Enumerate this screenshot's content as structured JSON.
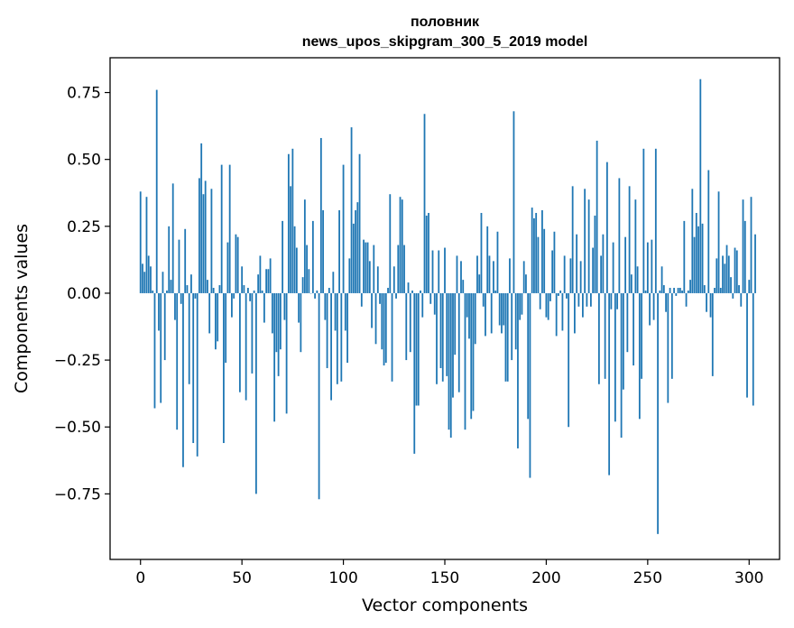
{
  "chart_data": {
    "type": "bar",
    "title_line1": "половник",
    "title_line2": "news_upos_skipgram_300_5_2019 model",
    "xlabel": "Vector components",
    "ylabel": "Components values",
    "xlim": [
      -15,
      315
    ],
    "ylim": [
      -0.995,
      0.88
    ],
    "xticks": [
      0,
      50,
      100,
      150,
      200,
      250,
      300
    ],
    "xtick_labels": [
      "0",
      "50",
      "100",
      "150",
      "200",
      "250",
      "300"
    ],
    "yticks": [
      0.75,
      0.5,
      0.25,
      0.0,
      -0.25,
      -0.5,
      -0.75
    ],
    "ytick_labels": [
      "0.75",
      "0.50",
      "0.25",
      "0.00",
      "−0.25",
      "−0.50",
      "−0.75"
    ],
    "bar_color": "#1f77b4",
    "grid": false,
    "values": [
      0.38,
      0.11,
      0.08,
      0.36,
      0.14,
      0.1,
      0.01,
      -0.43,
      0.76,
      -0.14,
      -0.41,
      0.08,
      -0.25,
      0.01,
      0.25,
      0.05,
      0.41,
      -0.1,
      -0.51,
      0.2,
      -0.04,
      -0.65,
      0.24,
      0.03,
      -0.34,
      0.07,
      -0.56,
      -0.02,
      -0.61,
      0.43,
      0.56,
      0.37,
      0.42,
      0.05,
      -0.15,
      0.39,
      0.02,
      -0.21,
      -0.18,
      0.03,
      0.48,
      -0.56,
      -0.26,
      0.19,
      0.48,
      -0.09,
      -0.02,
      0.22,
      0.21,
      -0.37,
      0.1,
      0.03,
      -0.4,
      0.02,
      -0.03,
      -0.3,
      0.01,
      -0.75,
      0.07,
      0.14,
      0.01,
      -0.11,
      0.09,
      0.09,
      0.13,
      -0.15,
      -0.48,
      -0.22,
      -0.31,
      -0.21,
      0.27,
      -0.1,
      -0.45,
      0.52,
      0.4,
      0.54,
      0.25,
      0.17,
      -0.11,
      -0.22,
      0.06,
      0.35,
      0.18,
      0.09,
      0.0,
      0.27,
      -0.02,
      0.01,
      -0.77,
      0.58,
      0.31,
      -0.1,
      -0.28,
      0.02,
      -0.4,
      0.08,
      -0.14,
      -0.34,
      0.31,
      -0.33,
      0.48,
      -0.14,
      -0.26,
      0.13,
      0.62,
      0.26,
      0.31,
      0.34,
      0.52,
      -0.05,
      0.2,
      0.19,
      0.19,
      0.12,
      -0.13,
      0.18,
      -0.19,
      0.1,
      -0.04,
      -0.21,
      -0.27,
      -0.26,
      0.02,
      0.37,
      -0.33,
      0.1,
      -0.02,
      0.18,
      0.36,
      0.35,
      0.18,
      -0.25,
      0.04,
      -0.22,
      0.01,
      -0.6,
      -0.42,
      -0.42,
      0.01,
      -0.09,
      0.67,
      0.29,
      0.3,
      -0.04,
      0.16,
      -0.08,
      -0.34,
      0.16,
      -0.28,
      -0.33,
      0.17,
      -0.31,
      -0.51,
      -0.54,
      -0.39,
      -0.23,
      0.14,
      -0.37,
      0.12,
      0.05,
      -0.51,
      -0.09,
      -0.17,
      -0.47,
      -0.44,
      -0.19,
      0.14,
      0.07,
      0.3,
      -0.05,
      -0.16,
      0.25,
      0.14,
      -0.15,
      0.12,
      0.01,
      0.23,
      -0.12,
      -0.15,
      -0.12,
      -0.33,
      -0.33,
      0.13,
      -0.25,
      0.68,
      -0.21,
      -0.58,
      -0.1,
      -0.08,
      0.12,
      0.07,
      -0.47,
      -0.69,
      0.32,
      0.28,
      0.3,
      0.21,
      -0.06,
      0.31,
      0.24,
      -0.09,
      -0.1,
      -0.03,
      0.16,
      0.23,
      -0.16,
      -0.01,
      0.01,
      -0.14,
      0.14,
      -0.02,
      -0.5,
      0.13,
      0.4,
      -0.15,
      0.22,
      -0.05,
      0.12,
      -0.09,
      0.39,
      -0.05,
      0.35,
      -0.05,
      0.17,
      0.29,
      0.57,
      -0.34,
      0.14,
      0.22,
      -0.32,
      0.49,
      -0.68,
      -0.06,
      0.19,
      -0.48,
      -0.06,
      0.43,
      -0.54,
      -0.36,
      0.21,
      -0.22,
      0.4,
      0.07,
      -0.27,
      0.35,
      0.1,
      -0.47,
      -0.32,
      0.54,
      0.01,
      0.19,
      -0.12,
      0.2,
      -0.1,
      0.54,
      -0.9,
      0.01,
      0.1,
      0.03,
      -0.07,
      -0.41,
      0.02,
      -0.32,
      0.02,
      -0.01,
      0.02,
      0.02,
      0.01,
      0.27,
      -0.05,
      0.01,
      0.05,
      0.39,
      0.21,
      0.3,
      0.25,
      0.8,
      0.26,
      0.03,
      -0.07,
      0.46,
      -0.09,
      -0.31,
      0.02,
      0.13,
      0.38,
      0.02,
      0.14,
      0.11,
      0.18,
      0.14,
      0.06,
      -0.02,
      0.17,
      0.16,
      0.03,
      -0.05,
      0.35,
      0.27,
      -0.39,
      0.05,
      0.36,
      -0.42,
      0.22
    ]
  }
}
